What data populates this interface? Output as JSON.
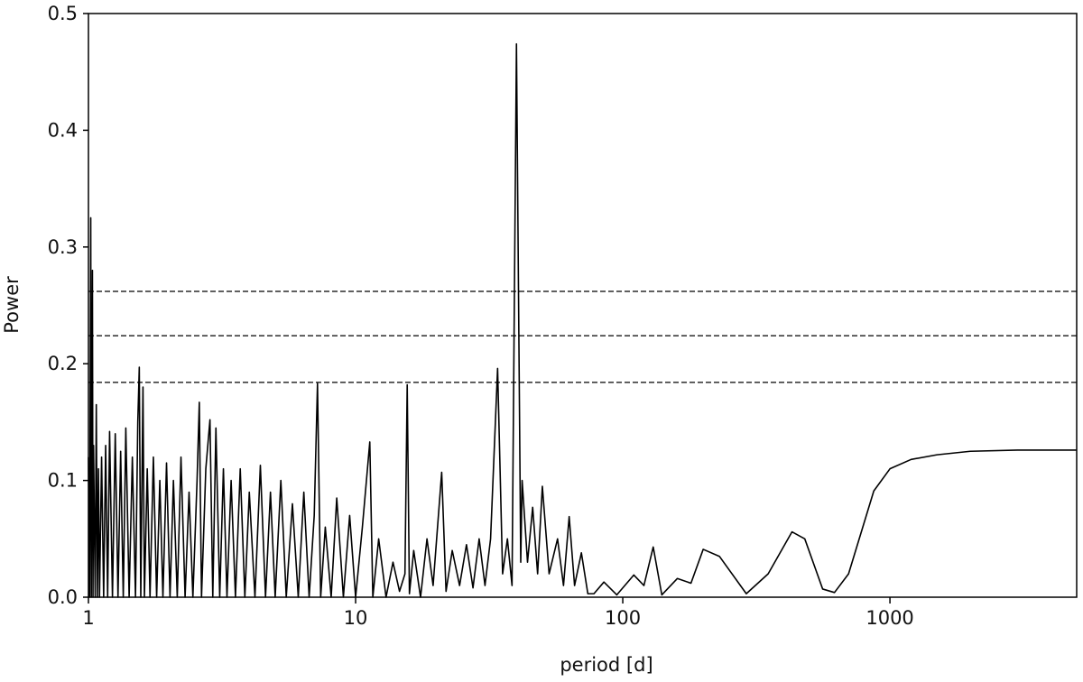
{
  "chart_data": {
    "type": "line",
    "xlabel": "period [d]",
    "ylabel": "Power",
    "xscale": "log",
    "xlim": [
      1,
      5000
    ],
    "xticks": [
      1,
      10,
      100,
      1000
    ],
    "ylim": [
      0,
      0.5
    ],
    "yticks": [
      {
        "value": 0,
        "label": "0.0"
      },
      0.1,
      0.2,
      0.3,
      0.4,
      0.5
    ],
    "hlines": [
      0.262,
      0.224,
      0.184
    ],
    "hline_style": "dashed",
    "series": [
      {
        "color": "#000000",
        "x": [
          1.0,
          1.01,
          1.02,
          1.025,
          1.035,
          1.04,
          1.045,
          1.06,
          1.07,
          1.08,
          1.09,
          1.1,
          1.12,
          1.14,
          1.16,
          1.18,
          1.2,
          1.23,
          1.26,
          1.29,
          1.32,
          1.35,
          1.38,
          1.42,
          1.46,
          1.5,
          1.53,
          1.55,
          1.57,
          1.6,
          1.62,
          1.66,
          1.7,
          1.75,
          1.8,
          1.85,
          1.9,
          1.96,
          2.02,
          2.08,
          2.15,
          2.22,
          2.3,
          2.38,
          2.46,
          2.55,
          2.6,
          2.65,
          2.75,
          2.85,
          2.92,
          3.0,
          3.1,
          3.2,
          3.3,
          3.42,
          3.55,
          3.7,
          3.85,
          4.0,
          4.2,
          4.4,
          4.6,
          4.8,
          5.0,
          5.25,
          5.5,
          5.8,
          6.1,
          6.4,
          6.7,
          7.0,
          7.2,
          7.4,
          7.7,
          8.1,
          8.5,
          9.0,
          9.5,
          10.0,
          10.6,
          11.3,
          11.6,
          12.2,
          13.0,
          13.8,
          14.6,
          15.3,
          15.6,
          15.9,
          16.5,
          17.5,
          18.5,
          19.5,
          21.0,
          21.8,
          23,
          24.5,
          26,
          27.5,
          29,
          30.5,
          32,
          34,
          35.5,
          37,
          38.5,
          40,
          41.5,
          42,
          44,
          46,
          48,
          50,
          53,
          57,
          60,
          63,
          66,
          70,
          74,
          78,
          85,
          95,
          110,
          120,
          130,
          140,
          160,
          180,
          200,
          230,
          290,
          350,
          430,
          480,
          560,
          620,
          700,
          870,
          1000,
          1200,
          1500,
          2000,
          3000,
          5000
        ],
        "values": [
          0.12,
          0.0,
          0.325,
          0.0,
          0.28,
          0.0,
          0.13,
          0.0,
          0.165,
          0.0,
          0.11,
          0.0,
          0.12,
          0.0,
          0.13,
          0.0,
          0.142,
          0.0,
          0.14,
          0.0,
          0.125,
          0.0,
          0.145,
          0.0,
          0.12,
          0.0,
          0.15,
          0.197,
          0.0,
          0.18,
          0.0,
          0.11,
          0.0,
          0.12,
          0.0,
          0.1,
          0.0,
          0.115,
          0.0,
          0.1,
          0.0,
          0.12,
          0.0,
          0.09,
          0.0,
          0.1,
          0.167,
          0.0,
          0.11,
          0.152,
          0.0,
          0.145,
          0.0,
          0.11,
          0.0,
          0.1,
          0.0,
          0.11,
          0.0,
          0.09,
          0.0,
          0.113,
          0.0,
          0.09,
          0.0,
          0.1,
          0.0,
          0.08,
          0.0,
          0.09,
          0.0,
          0.07,
          0.183,
          0.0,
          0.06,
          0.0,
          0.085,
          0.0,
          0.07,
          0.0,
          0.06,
          0.133,
          0.0,
          0.05,
          0.0,
          0.03,
          0.005,
          0.02,
          0.182,
          0.003,
          0.04,
          0.0,
          0.05,
          0.01,
          0.107,
          0.005,
          0.04,
          0.01,
          0.045,
          0.008,
          0.05,
          0.01,
          0.05,
          0.196,
          0.02,
          0.05,
          0.01,
          0.474,
          0.03,
          0.1,
          0.03,
          0.077,
          0.02,
          0.095,
          0.02,
          0.05,
          0.01,
          0.069,
          0.01,
          0.038,
          0.003,
          0.003,
          0.013,
          0.002,
          0.019,
          0.01,
          0.043,
          0.002,
          0.016,
          0.012,
          0.041,
          0.035,
          0.003,
          0.02,
          0.056,
          0.05,
          0.007,
          0.004,
          0.02,
          0.091,
          0.11,
          0.118,
          0.122,
          0.125,
          0.126,
          0.126
        ]
      }
    ]
  }
}
